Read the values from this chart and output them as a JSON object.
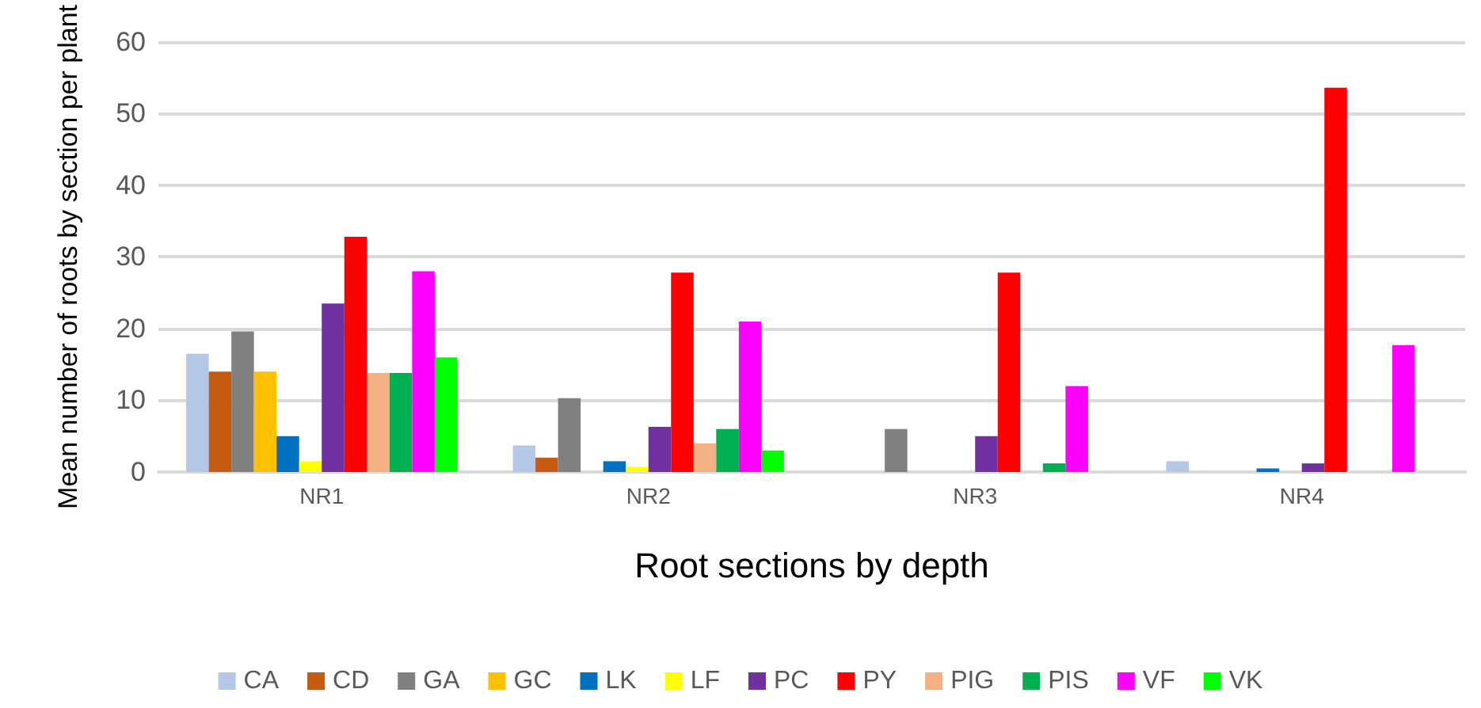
{
  "chart_data": {
    "type": "bar",
    "xlabel": "Root sections by depth",
    "ylabel": "Mean number of roots by section per plant",
    "categories": [
      "NR1",
      "NR2",
      "NR3",
      "NR4"
    ],
    "series": [
      {
        "name": "CA",
        "color": "#b4c7e7",
        "values": [
          16.5,
          3.7,
          0,
          1.5
        ]
      },
      {
        "name": "CD",
        "color": "#c55a11",
        "values": [
          14,
          2,
          0,
          0
        ]
      },
      {
        "name": "GA",
        "color": "#808080",
        "values": [
          19.6,
          10.3,
          6,
          0
        ]
      },
      {
        "name": "GC",
        "color": "#ffc000",
        "values": [
          14,
          0,
          0,
          0
        ]
      },
      {
        "name": "LK",
        "color": "#0070c0",
        "values": [
          5,
          1.5,
          0,
          0.5
        ]
      },
      {
        "name": "LF",
        "color": "#ffff00",
        "values": [
          1.5,
          0.7,
          0,
          0
        ]
      },
      {
        "name": "PC",
        "color": "#7030a0",
        "values": [
          23.5,
          6.3,
          5,
          1.2
        ]
      },
      {
        "name": "PY",
        "color": "#ff0000",
        "values": [
          32.8,
          27.8,
          27.8,
          53.6
        ]
      },
      {
        "name": "PIG",
        "color": "#f4b183",
        "values": [
          13.8,
          4,
          0,
          0
        ]
      },
      {
        "name": "PIS",
        "color": "#00b050",
        "values": [
          13.8,
          6,
          1.2,
          0
        ]
      },
      {
        "name": "VF",
        "color": "#ff00ff",
        "values": [
          28,
          21,
          12,
          17.7
        ]
      },
      {
        "name": "VK",
        "color": "#00ff00",
        "values": [
          16,
          3,
          0,
          0
        ]
      }
    ],
    "ylim": [
      0,
      60
    ],
    "yticks": [
      0,
      10,
      20,
      30,
      40,
      50,
      60
    ],
    "grid": "y",
    "legend": "bottom"
  }
}
